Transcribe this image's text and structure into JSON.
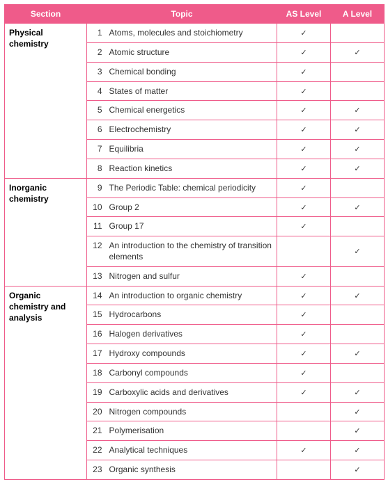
{
  "header": {
    "section": "Section",
    "topic": "Topic",
    "as_level": "AS Level",
    "a_level": "A Level"
  },
  "colors": {
    "header_bg": "#ef5b8a",
    "header_fg": "#ffffff",
    "border": "#ef5b8a",
    "cell_bg": "#ffffff",
    "text": "#333333"
  },
  "tick_glyph": "✓",
  "sections": [
    {
      "name": "Physical chemistry",
      "rows": [
        {
          "n": "1",
          "topic": "Atoms, molecules and stoichiometry",
          "as": true,
          "a": false
        },
        {
          "n": "2",
          "topic": "Atomic structure",
          "as": true,
          "a": true
        },
        {
          "n": "3",
          "topic": "Chemical bonding",
          "as": true,
          "a": false
        },
        {
          "n": "4",
          "topic": "States of matter",
          "as": true,
          "a": false
        },
        {
          "n": "5",
          "topic": "Chemical energetics",
          "as": true,
          "a": true
        },
        {
          "n": "6",
          "topic": "Electrochemistry",
          "as": true,
          "a": true
        },
        {
          "n": "7",
          "topic": "Equilibria",
          "as": true,
          "a": true
        },
        {
          "n": "8",
          "topic": "Reaction kinetics",
          "as": true,
          "a": true
        }
      ]
    },
    {
      "name": "Inorganic chemistry",
      "rows": [
        {
          "n": "9",
          "topic": "The Periodic Table: chemical periodicity",
          "as": true,
          "a": false
        },
        {
          "n": "10",
          "topic": "Group 2",
          "as": true,
          "a": true
        },
        {
          "n": "11",
          "topic": "Group 17",
          "as": true,
          "a": false
        },
        {
          "n": "12",
          "topic": "An introduction to the chemistry of transition elements",
          "as": false,
          "a": true
        },
        {
          "n": "13",
          "topic": "Nitrogen and sulfur",
          "as": true,
          "a": false
        }
      ]
    },
    {
      "name": "Organic chemistry and analysis",
      "rows": [
        {
          "n": "14",
          "topic": "An introduction to organic chemistry",
          "as": true,
          "a": true
        },
        {
          "n": "15",
          "topic": "Hydrocarbons",
          "as": true,
          "a": false
        },
        {
          "n": "16",
          "topic": "Halogen derivatives",
          "as": true,
          "a": false
        },
        {
          "n": "17",
          "topic": "Hydroxy compounds",
          "as": true,
          "a": true
        },
        {
          "n": "18",
          "topic": "Carbonyl compounds",
          "as": true,
          "a": false
        },
        {
          "n": "19",
          "topic": "Carboxylic acids and derivatives",
          "as": true,
          "a": true
        },
        {
          "n": "20",
          "topic": "Nitrogen compounds",
          "as": false,
          "a": true
        },
        {
          "n": "21",
          "topic": "Polymerisation",
          "as": false,
          "a": true
        },
        {
          "n": "22",
          "topic": "Analytical techniques",
          "as": true,
          "a": true
        },
        {
          "n": "23",
          "topic": "Organic synthesis",
          "as": false,
          "a": true
        }
      ]
    }
  ]
}
